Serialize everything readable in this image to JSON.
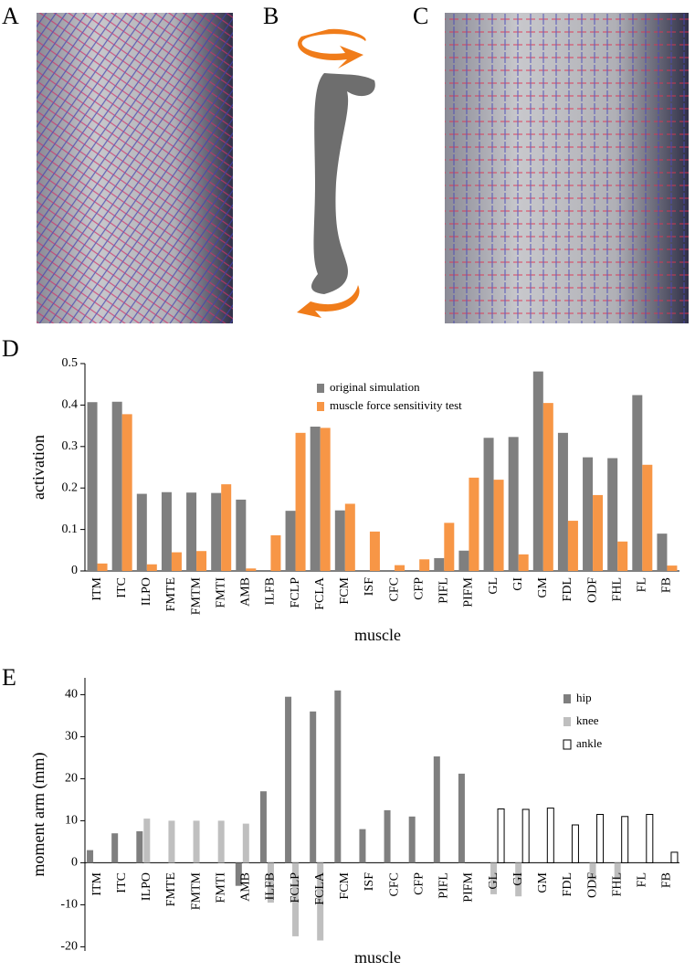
{
  "panel_labels": [
    "A",
    "B",
    "C",
    "D",
    "E"
  ],
  "chart_data": [
    {
      "type": "bar",
      "ylabel": "activation",
      "xlabel": "muscle",
      "categories": [
        "ITM",
        "ITC",
        "ILPO",
        "FMTE",
        "FMTM",
        "FMTI",
        "AMB",
        "ILFB",
        "FCLP",
        "FCLA",
        "FCM",
        "ISF",
        "CFC",
        "CFP",
        "PIFL",
        "PIFM",
        "GL",
        "GI",
        "GM",
        "FDL",
        "ODF",
        "FHL",
        "FL",
        "FB"
      ],
      "series": [
        {
          "name": "original simulation",
          "color": "#7f7f7f",
          "values": [
            0.407,
            0.408,
            0.186,
            0.19,
            0.189,
            0.188,
            0.172,
            null,
            0.145,
            0.348,
            0.146,
            null,
            null,
            null,
            0.031,
            0.049,
            0.321,
            0.323,
            0.481,
            0.333,
            0.274,
            0.272,
            0.424,
            0.09
          ]
        },
        {
          "name": "muscle force sensitivity test",
          "color": "#f79646",
          "values": [
            0.018,
            0.378,
            0.016,
            0.045,
            0.048,
            0.209,
            0.006,
            0.086,
            0.333,
            0.345,
            0.162,
            0.095,
            0.014,
            0.028,
            0.116,
            0.225,
            0.22,
            0.04,
            0.405,
            0.121,
            0.183,
            0.071,
            0.256,
            0.013
          ]
        }
      ],
      "ylim": [
        0,
        0.5
      ],
      "yticks": [
        0,
        0.1,
        0.2,
        0.3,
        0.4,
        0.5
      ],
      "legend": "upper center"
    },
    {
      "type": "bar",
      "ylabel": "moment arm (mm)",
      "xlabel": "muscle",
      "categories": [
        "ITM",
        "ITC",
        "ILPO",
        "FMTE",
        "FMTM",
        "FMTI",
        "AMB",
        "ILFB",
        "FCLP",
        "FCLA",
        "FCM",
        "ISF",
        "CFC",
        "CFP",
        "PIFL",
        "PIFM",
        "GL",
        "GI",
        "GM",
        "FDL",
        "ODF",
        "FHL",
        "FL",
        "FB"
      ],
      "series": [
        {
          "name": "hip",
          "color": "#7f7f7f",
          "values": [
            3,
            7,
            7.5,
            null,
            null,
            null,
            -5.5,
            17,
            39.5,
            36,
            41,
            8,
            12.5,
            11,
            25.3,
            21.2,
            null,
            null,
            null,
            null,
            null,
            null,
            null,
            null
          ]
        },
        {
          "name": "knee",
          "color": "#bfbfbf",
          "values": [
            null,
            null,
            10.5,
            10,
            10,
            10,
            9.3,
            -9.5,
            -17.5,
            -18.5,
            null,
            null,
            null,
            null,
            null,
            null,
            -7.5,
            -8,
            null,
            null,
            -4,
            -4,
            null,
            null
          ]
        },
        {
          "name": "ankle",
          "color": "#ffffff",
          "edgecolor": "#000000",
          "values": [
            null,
            null,
            null,
            null,
            null,
            null,
            null,
            null,
            null,
            null,
            null,
            null,
            null,
            null,
            null,
            null,
            12.8,
            12.7,
            13,
            9,
            11.5,
            11,
            11.5,
            2.5
          ]
        }
      ],
      "ylim": [
        -21,
        44
      ],
      "yticks": [
        40,
        30,
        20,
        10,
        0,
        -10,
        -20
      ],
      "legend": "upper right"
    }
  ]
}
